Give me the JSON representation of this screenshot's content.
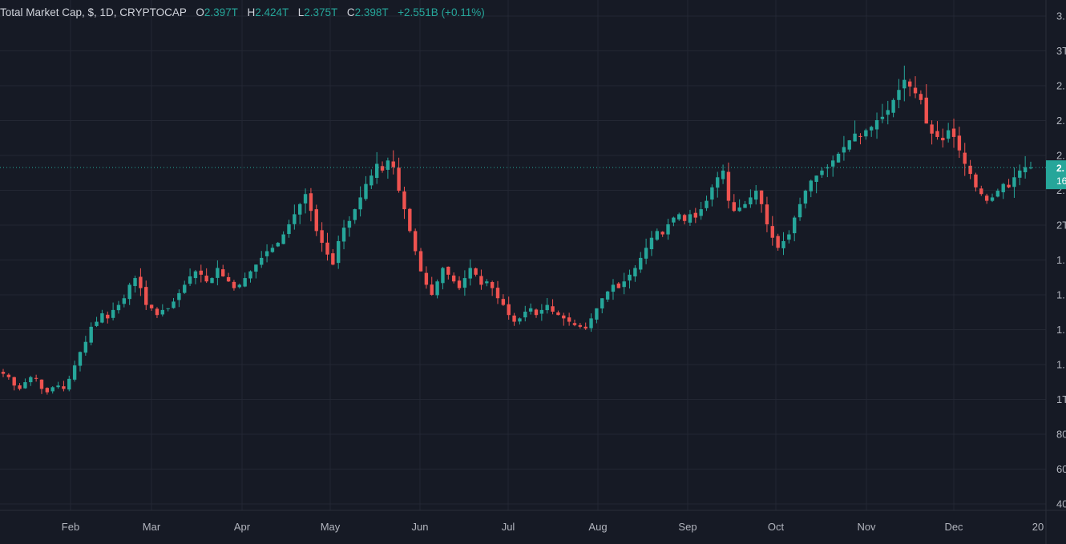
{
  "legend": {
    "symbol": "Total Market Cap, $, 1D, CRYPTOCAP",
    "o_label": "O",
    "o_val": "2.397T",
    "h_label": "H",
    "h_val": "2.424T",
    "l_label": "L",
    "l_val": "2.375T",
    "c_label": "C",
    "c_val": "2.398T",
    "change": "+2.551B (+0.11%)"
  },
  "colors": {
    "background": "#161a25",
    "grid": "#232733",
    "up": "#26a69a",
    "down": "#ef5350",
    "axis_text": "#b2b5be",
    "last_price_tag": "#26a69a"
  },
  "price_axis_labels": [
    "3.",
    "3T",
    "2.",
    "2.",
    "2.",
    "2.",
    "2T",
    "1.",
    "1.",
    "1.",
    "1.",
    "1T",
    "80",
    "60",
    "40"
  ],
  "last_price_tag": {
    "line1": "2.",
    "line2": "16"
  },
  "chart_data": {
    "type": "candlestick",
    "title": "Total Market Cap, $, 1D, CRYPTOCAP",
    "x_ticks": [
      "Feb",
      "Mar",
      "Apr",
      "May",
      "Jun",
      "Jul",
      "Aug",
      "Sep",
      "Oct",
      "Nov",
      "Dec",
      "20"
    ],
    "ohlc_last": {
      "open": 2.397,
      "high": 2.424,
      "low": 2.375,
      "close": 2.398,
      "unit": "T"
    },
    "change": {
      "abs": "+2.551B",
      "pct": "+0.11%"
    },
    "grid": true,
    "series": [
      {
        "name": "",
        "values": [
          1.17,
          1.15,
          1.1,
          1.08,
          1.12,
          1.15,
          1.14,
          1.08,
          1.06,
          1.09,
          1.1,
          1.08,
          1.14,
          1.22,
          1.3,
          1.36,
          1.45,
          1.48,
          1.53,
          1.5,
          1.55,
          1.58,
          1.62,
          1.7,
          1.74,
          1.68,
          1.58,
          1.56,
          1.52,
          1.55,
          1.56,
          1.6,
          1.65,
          1.7,
          1.75,
          1.78,
          1.76,
          1.72,
          1.74,
          1.8,
          1.75,
          1.72,
          1.68,
          1.7,
          1.74,
          1.78,
          1.82,
          1.86,
          1.9,
          1.92,
          1.95,
          2.0,
          2.06,
          2.12,
          2.18,
          2.24,
          2.14,
          2.02,
          1.95,
          1.88,
          1.82,
          1.96,
          2.04,
          2.08,
          2.15,
          2.22,
          2.3,
          2.35,
          2.42,
          2.38,
          2.44,
          2.4,
          2.26,
          2.15,
          2.02,
          1.9,
          1.78,
          1.7,
          1.64,
          1.72,
          1.8,
          1.76,
          1.72,
          1.68,
          1.74,
          1.8,
          1.76,
          1.7,
          1.72,
          1.68,
          1.62,
          1.58,
          1.52,
          1.48,
          1.5,
          1.54,
          1.56,
          1.52,
          1.55,
          1.58,
          1.54,
          1.52,
          1.5,
          1.48,
          1.46,
          1.45,
          1.44,
          1.5,
          1.56,
          1.62,
          1.66,
          1.7,
          1.68,
          1.72,
          1.76,
          1.8,
          1.86,
          1.92,
          1.98,
          2.02,
          2.0,
          2.06,
          2.1,
          2.12,
          2.08,
          2.12,
          2.1,
          2.15,
          2.2,
          2.28,
          2.34,
          2.38,
          2.2,
          2.14,
          2.16,
          2.18,
          2.22,
          2.26,
          2.18,
          2.06,
          1.98,
          1.92,
          1.96,
          2.0,
          2.1,
          2.18,
          2.26,
          2.32,
          2.35,
          2.38,
          2.4,
          2.44,
          2.48,
          2.52,
          2.56,
          2.6,
          2.58,
          2.62,
          2.64,
          2.68,
          2.7,
          2.74,
          2.8,
          2.86,
          2.92,
          2.88,
          2.84,
          2.8,
          2.66,
          2.6,
          2.58,
          2.56,
          2.62,
          2.58,
          2.5,
          2.42,
          2.36,
          2.28,
          2.24,
          2.2,
          2.22,
          2.26,
          2.3,
          2.28,
          2.34,
          2.38,
          2.4,
          2.398
        ]
      }
    ]
  }
}
